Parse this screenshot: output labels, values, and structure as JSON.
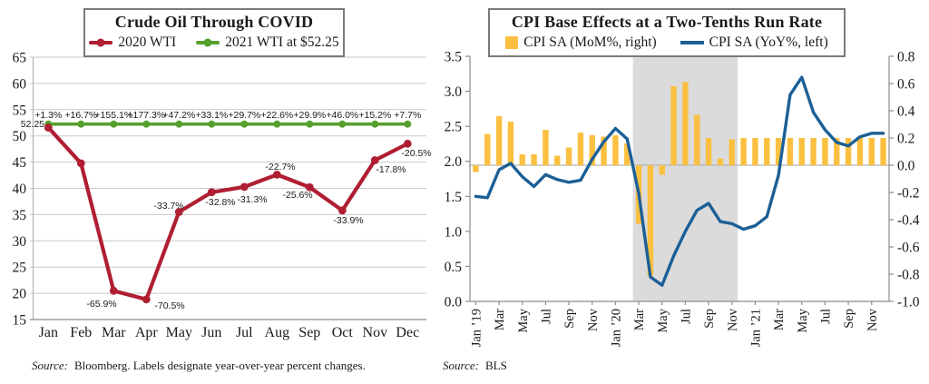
{
  "colors": {
    "red": "#B01E33",
    "green": "#55A02C",
    "blue": "#1B5F96",
    "yellow": "#FBC040",
    "shade": "#DBDBDB",
    "grid": "#C9C9C9",
    "axis": "#8C8C8C",
    "zero_line": "#B3B3B3",
    "label_red": "#B01E33",
    "label_green": "#4E9427",
    "text": "#1A1A1A"
  },
  "chart_data": [
    {
      "id": "crude-oil",
      "type": "line",
      "title": "Crude Oil Through COVID",
      "categories": [
        "Jan",
        "Feb",
        "Mar",
        "Apr",
        "May",
        "Jun",
        "Jul",
        "Aug",
        "Sep",
        "Oct",
        "Nov",
        "Dec"
      ],
      "ylim": [
        15,
        65
      ],
      "ytick_step": 5,
      "grid": true,
      "legend_position": "top-box",
      "series": [
        {
          "name": "2020 WTI",
          "color": "#B01E33",
          "values": [
            51.58,
            44.77,
            20.48,
            18.84,
            35.5,
            39.26,
            40.28,
            42.62,
            40.22,
            35.79,
            45.36,
            48.51
          ],
          "point_labels": [
            "",
            "",
            "-65.9%",
            "-70.5%",
            "-33.7%",
            "-32.8%",
            "-31.3%",
            "-22.7%",
            "-25.6%",
            "-33.9%",
            "-17.8%",
            "-20.5%"
          ]
        },
        {
          "name": "2021 WTI at $52.25",
          "color": "#55A02C",
          "values": [
            52.25,
            52.25,
            52.25,
            52.25,
            52.25,
            52.25,
            52.25,
            52.25,
            52.25,
            52.25,
            52.25,
            52.25
          ],
          "start_label": "52.25",
          "point_labels": [
            "+1.3%",
            "+16.7%",
            "+155.1%",
            "+177.3%",
            "+47.2%",
            "+33.1%",
            "+29.7%",
            "+22.6%",
            "+29.9%",
            "+46.0%",
            "+15.2%",
            "+7.7%"
          ]
        }
      ],
      "source_label": "Source:",
      "source_text": "Bloomberg. Labels designate year-over-year percent changes."
    },
    {
      "id": "cpi-base-effects",
      "type": "bar+line",
      "title": "CPI Base Effects at a Two-Tenths Run Rate",
      "months": 36,
      "x_tick_labels": [
        "Jan ’19",
        "Mar",
        "May",
        "Jul",
        "Sep",
        "Nov",
        "Jan ’20",
        "Mar",
        "May",
        "Jul",
        "Sep",
        "Nov",
        "Jan ’21",
        "Mar",
        "May",
        "Jul",
        "Sep",
        "Nov"
      ],
      "left_axis": {
        "label": "YoY%",
        "ylim": [
          0.0,
          3.5
        ],
        "step": 0.5
      },
      "right_axis": {
        "label": "MoM%",
        "ylim": [
          -1.0,
          0.8
        ],
        "step": 0.2
      },
      "shaded_region": {
        "from_month_index": 14,
        "to_month_index": 22,
        "color": "#DBDBDB"
      },
      "bar_series": {
        "name": "CPI SA (MoM%, right)",
        "axis": "right",
        "color": "#FBC040",
        "values": [
          -0.05,
          0.23,
          0.36,
          0.32,
          0.08,
          0.08,
          0.26,
          0.07,
          0.13,
          0.24,
          0.22,
          0.21,
          0.22,
          0.16,
          -0.43,
          -0.81,
          -0.07,
          0.58,
          0.61,
          0.37,
          0.2,
          0.05,
          0.19,
          0.2,
          0.2,
          0.2,
          0.2,
          0.2,
          0.2,
          0.2,
          0.2,
          0.2,
          0.2,
          0.2,
          0.2,
          0.2
        ]
      },
      "line_series": {
        "name": "CPI SA (YoY%, left)",
        "axis": "left",
        "color": "#1B5F96",
        "values": [
          1.5,
          1.48,
          1.88,
          1.97,
          1.78,
          1.64,
          1.81,
          1.74,
          1.7,
          1.73,
          2.03,
          2.28,
          2.47,
          2.32,
          1.54,
          0.35,
          0.23,
          0.65,
          1.0,
          1.3,
          1.4,
          1.14,
          1.11,
          1.03,
          1.08,
          1.21,
          1.8,
          2.95,
          3.2,
          2.7,
          2.45,
          2.27,
          2.22,
          2.35,
          2.4,
          2.4
        ]
      },
      "source_label": "Source:",
      "source_text": "BLS"
    }
  ]
}
